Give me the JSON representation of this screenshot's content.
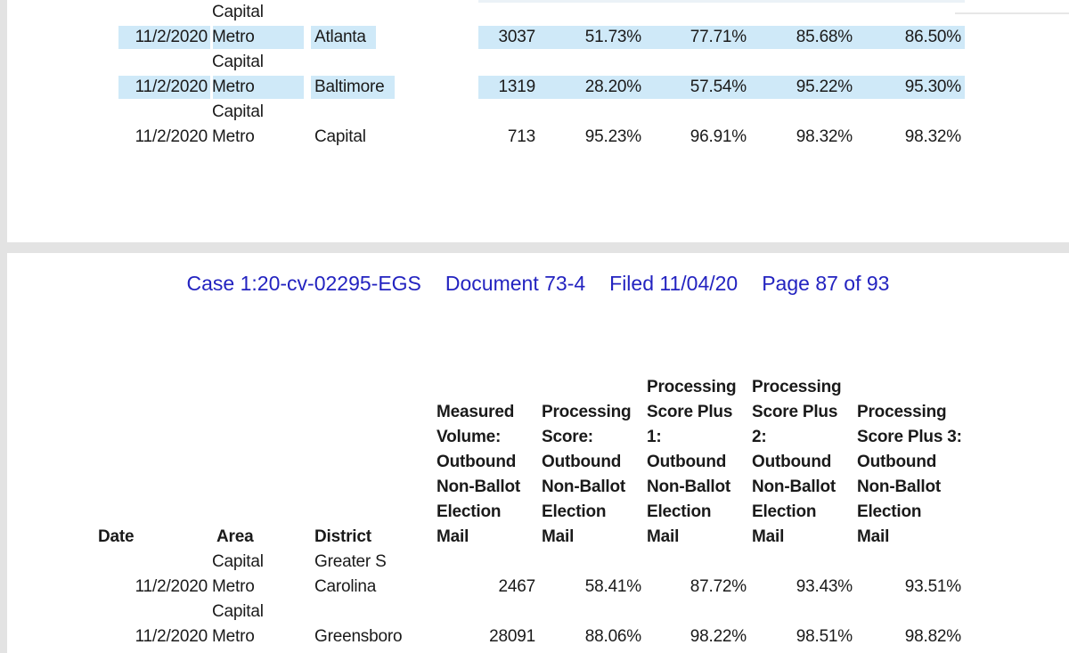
{
  "document": {
    "stamp": {
      "parts": [
        "Case 1:20-cv-02295-EGS",
        "Document 73-4",
        "Filed 11/04/20",
        "Page 87 of 93"
      ]
    },
    "colors": {
      "selection_highlight": "#cfe9f8",
      "stamp_blue": "#2323c0",
      "text": "#1a1a1a",
      "page_gap_gray": "#e3e3e3"
    },
    "top_table": {
      "rows": [
        {
          "date": "11/2/2020",
          "area_lines": [
            "Capital",
            "Metro"
          ],
          "district_lines": [
            "",
            "Atlanta"
          ],
          "volume": "3037",
          "scores": [
            "51.73%",
            "77.71%",
            "85.68%",
            "86.50%"
          ],
          "highlighted": true
        },
        {
          "date": "11/2/2020",
          "area_lines": [
            "Capital",
            "Metro"
          ],
          "district_lines": [
            "",
            "Baltimore"
          ],
          "volume": "1319",
          "scores": [
            "28.20%",
            "57.54%",
            "95.22%",
            "95.30%"
          ],
          "highlighted": true
        },
        {
          "date": "11/2/2020",
          "area_lines": [
            "Capital",
            "Metro"
          ],
          "district_lines": [
            "",
            "Capital"
          ],
          "volume": "713",
          "scores": [
            "95.23%",
            "96.91%",
            "98.32%",
            "98.32%"
          ],
          "highlighted": false
        }
      ]
    },
    "bottom_table": {
      "headers": {
        "date": "Date",
        "area": "Area",
        "district": "District",
        "metric_columns": [
          {
            "label": "Measured Volume: Outbound Non-Ballot Election Mail",
            "lines": [
              "Measured",
              "Volume:",
              "Outbound",
              "Non-Ballot",
              "Election",
              "Mail"
            ]
          },
          {
            "label": "Processing Score: Outbound Non-Ballot Election Mail",
            "lines": [
              "Processing",
              "Score:",
              "Outbound",
              "Non-Ballot",
              "Election",
              "Mail"
            ]
          },
          {
            "label": "Processing Score Plus 1: Outbound Non-Ballot Election Mail",
            "lines": [
              "Processing",
              "Score Plus",
              "1:",
              "Outbound",
              "Non-Ballot",
              "Election",
              "Mail"
            ]
          },
          {
            "label": "Processing Score Plus 2: Outbound Non-Ballot Election Mail",
            "lines": [
              "Processing",
              "Score Plus",
              "2:",
              "Outbound",
              "Non-Ballot",
              "Election",
              "Mail"
            ]
          },
          {
            "label": "Processing Score Plus 3: Outbound Non-Ballot Election Mail",
            "lines": [
              "Processing",
              "Score Plus 3:",
              "Outbound",
              "Non-Ballot",
              "Election",
              "Mail"
            ]
          }
        ]
      },
      "rows": [
        {
          "date": "11/2/2020",
          "area_lines": [
            "Capital",
            "Metro"
          ],
          "district_lines": [
            "Greater S",
            "Carolina"
          ],
          "volume": "2467",
          "scores": [
            "58.41%",
            "87.72%",
            "93.43%",
            "93.51%"
          ],
          "highlighted": false
        },
        {
          "date": "11/2/2020",
          "area_lines": [
            "Capital",
            "Metro"
          ],
          "district_lines": [
            "",
            "Greensboro"
          ],
          "volume": "28091",
          "scores": [
            "88.06%",
            "98.22%",
            "98.51%",
            "98.82%"
          ],
          "highlighted": false
        }
      ]
    }
  }
}
